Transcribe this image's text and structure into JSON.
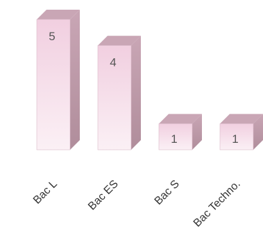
{
  "chart_data": {
    "type": "bar",
    "style": "3d-column",
    "categories": [
      "Bac L",
      "Bac ES",
      "Bac S",
      "Bac Techno."
    ],
    "values": [
      5,
      4,
      1,
      1
    ],
    "data_labels": [
      "5",
      "4",
      "1",
      "1"
    ],
    "title": "",
    "xlabel": "",
    "ylabel": "",
    "ylim": [
      0,
      5
    ],
    "grid": false,
    "legend": "none",
    "colors": {
      "front_top": "#f1cfe0",
      "front_bottom": "#fbf0f5",
      "side": "#b08d9b",
      "top": "#c9a6b5",
      "edge": "#d9b9c8"
    }
  }
}
